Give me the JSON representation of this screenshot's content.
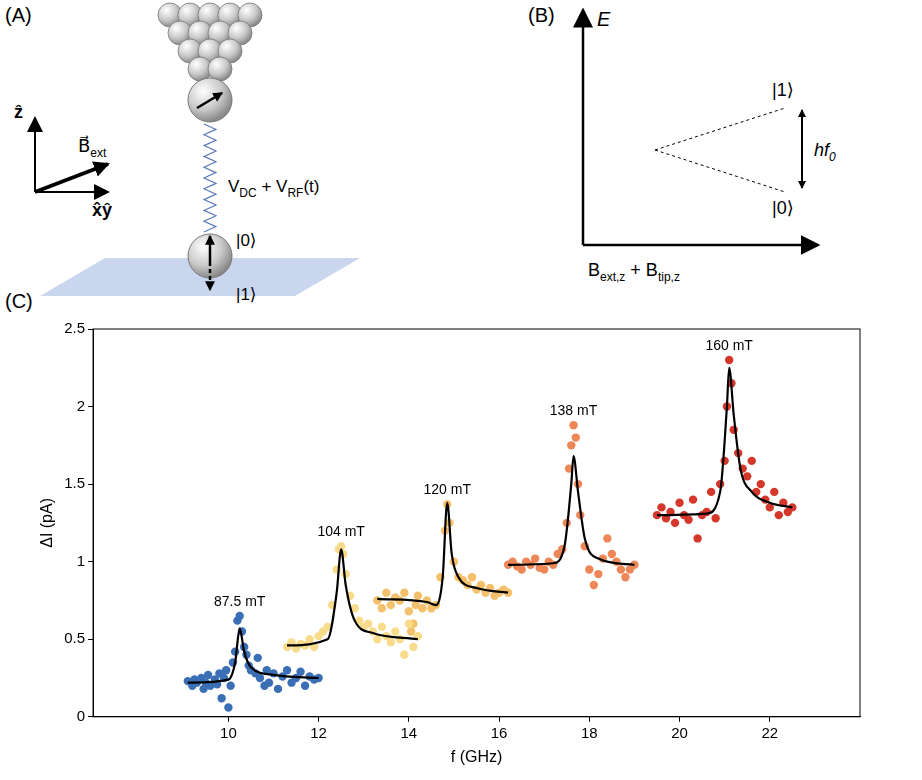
{
  "panels": {
    "A": {
      "letter": "(A)",
      "axis_z": [
        {
          "t": "ẑ"
        }
      ],
      "axis_xy": [
        {
          "t": "x̂ŷ"
        }
      ],
      "field": [
        {
          "t": "B⃗"
        },
        {
          "sub": "ext"
        }
      ],
      "bias": [
        {
          "t": "V"
        },
        {
          "sub": "DC"
        },
        {
          "t": " + V"
        },
        {
          "sub": "RF"
        },
        {
          "t": "(t)"
        }
      ],
      "state0": [
        {
          "t": "|0⟩"
        }
      ],
      "state1": [
        {
          "t": "|1⟩"
        }
      ]
    },
    "B": {
      "letter": "(B)",
      "y_label": [
        {
          "t": "E"
        }
      ],
      "upper": [
        {
          "t": "|1⟩"
        }
      ],
      "lower": [
        {
          "t": "|0⟩"
        }
      ],
      "gap": [
        {
          "t": "hf"
        },
        {
          "sub": "0"
        }
      ],
      "x_label": [
        {
          "t": "B"
        },
        {
          "sub": "ext,z"
        },
        {
          "t": " + B"
        },
        {
          "sub": "tip,z"
        }
      ]
    },
    "C": {
      "letter": "(C)"
    }
  },
  "chart_data": {
    "type": "scatter",
    "x_label": "f (GHz)",
    "y_label": "ΔI (pA)",
    "xlim": [
      7,
      24
    ],
    "xticks": [
      10,
      12,
      14,
      16,
      18,
      20,
      22
    ],
    "ylim": [
      0,
      2.5
    ],
    "yticks": [
      0,
      0.5,
      1,
      1.5,
      2,
      2.5
    ],
    "grid": false,
    "marker": "circle",
    "series": [
      {
        "name": "87.5 mT",
        "color": "#3a6fb5",
        "x": [
          9.1,
          9.2,
          9.25,
          9.3,
          9.4,
          9.45,
          9.5,
          9.55,
          9.6,
          9.7,
          9.75,
          9.8,
          9.85,
          9.9,
          9.95,
          10.0,
          10.05,
          10.1,
          10.15,
          10.2,
          10.25,
          10.3,
          10.35,
          10.4,
          10.45,
          10.5,
          10.6,
          10.65,
          10.7,
          10.8,
          10.85,
          10.9,
          11.0,
          11.1,
          11.2,
          11.3,
          11.4,
          11.5,
          11.6,
          11.7,
          11.8,
          11.9,
          12.0
        ],
        "values": [
          0.23,
          0.2,
          0.24,
          0.22,
          0.25,
          0.18,
          0.22,
          0.27,
          0.2,
          0.24,
          0.21,
          0.28,
          0.12,
          0.25,
          0.3,
          0.06,
          0.2,
          0.35,
          0.42,
          0.62,
          0.65,
          0.55,
          0.45,
          0.4,
          0.33,
          0.3,
          0.28,
          0.38,
          0.25,
          0.2,
          0.3,
          0.22,
          0.28,
          0.18,
          0.26,
          0.3,
          0.22,
          0.25,
          0.29,
          0.2,
          0.26,
          0.24,
          0.25
        ],
        "fit": {
          "color": "#000000",
          "x": [
            9.1,
            10.0,
            10.15,
            10.25,
            10.35,
            10.5,
            11.0,
            12.0
          ],
          "values": [
            0.22,
            0.24,
            0.35,
            0.57,
            0.42,
            0.32,
            0.27,
            0.25
          ]
        }
      },
      {
        "name": "104 mT",
        "color": "#f8dc8c",
        "x": [
          11.3,
          11.4,
          11.5,
          11.6,
          11.7,
          11.8,
          11.9,
          12.0,
          12.1,
          12.2,
          12.3,
          12.4,
          12.45,
          12.5,
          12.55,
          12.6,
          12.7,
          12.8,
          12.9,
          13.0,
          13.1,
          13.2,
          13.3,
          13.4,
          13.5,
          13.6,
          13.7,
          13.8,
          13.9,
          14.0,
          14.1,
          14.2
        ],
        "values": [
          0.45,
          0.48,
          0.44,
          0.47,
          0.46,
          0.5,
          0.45,
          0.52,
          0.55,
          0.58,
          0.72,
          0.95,
          1.08,
          1.1,
          1.05,
          0.92,
          0.78,
          0.7,
          0.62,
          0.58,
          0.6,
          0.55,
          0.5,
          0.58,
          0.52,
          0.48,
          0.55,
          0.5,
          0.4,
          0.6,
          0.45,
          0.52
        ],
        "fit": {
          "color": "#000000",
          "x": [
            11.3,
            12.2,
            12.4,
            12.5,
            12.6,
            12.8,
            13.2,
            14.2
          ],
          "values": [
            0.46,
            0.5,
            0.8,
            1.08,
            0.85,
            0.62,
            0.54,
            0.5
          ]
        }
      },
      {
        "name": "120 mT",
        "color": "#f5c06b",
        "x": [
          13.3,
          13.4,
          13.5,
          13.6,
          13.7,
          13.8,
          13.9,
          14.0,
          14.05,
          14.1,
          14.15,
          14.2,
          14.3,
          14.4,
          14.5,
          14.6,
          14.7,
          14.8,
          14.85,
          14.9,
          15.0,
          15.1,
          15.2,
          15.3,
          15.4,
          15.5,
          15.6,
          15.7,
          15.8,
          15.9,
          16.0,
          16.1,
          16.2
        ],
        "values": [
          0.75,
          0.7,
          0.8,
          0.72,
          0.77,
          0.75,
          0.8,
          0.68,
          0.55,
          0.6,
          0.72,
          0.78,
          0.7,
          0.75,
          0.7,
          0.72,
          0.9,
          1.2,
          1.37,
          1.25,
          1.0,
          0.9,
          0.88,
          0.85,
          0.9,
          0.82,
          0.85,
          0.8,
          0.83,
          0.78,
          0.8,
          0.82,
          0.8
        ],
        "fit": {
          "color": "#000000",
          "x": [
            13.3,
            14.4,
            14.6,
            14.75,
            14.85,
            14.95,
            15.1,
            15.5,
            16.2
          ],
          "values": [
            0.76,
            0.74,
            0.72,
            0.9,
            1.38,
            1.05,
            0.9,
            0.83,
            0.8
          ]
        }
      },
      {
        "name": "138 mT",
        "color": "#ee8758",
        "x": [
          16.2,
          16.3,
          16.4,
          16.5,
          16.6,
          16.7,
          16.8,
          16.9,
          17.0,
          17.1,
          17.2,
          17.3,
          17.4,
          17.5,
          17.55,
          17.6,
          17.65,
          17.7,
          17.75,
          17.8,
          17.9,
          18.0,
          18.1,
          18.2,
          18.3,
          18.4,
          18.5,
          18.6,
          18.7,
          18.8,
          18.9,
          19.0
        ],
        "values": [
          0.98,
          1.0,
          0.97,
          0.95,
          1.0,
          0.98,
          1.02,
          0.96,
          0.95,
          1.0,
          0.98,
          1.05,
          1.08,
          1.25,
          1.6,
          1.75,
          1.88,
          1.8,
          1.5,
          1.3,
          1.1,
          0.95,
          0.85,
          0.92,
          1.02,
          1.15,
          1.05,
          1.0,
          0.95,
          0.9,
          0.95,
          0.98
        ],
        "fit": {
          "color": "#000000",
          "x": [
            16.2,
            17.2,
            17.45,
            17.6,
            17.65,
            17.75,
            17.9,
            18.2,
            19.0
          ],
          "values": [
            0.98,
            0.99,
            1.1,
            1.5,
            1.68,
            1.45,
            1.15,
            1.02,
            0.98
          ]
        }
      },
      {
        "name": "160 mT",
        "color": "#d5382b",
        "x": [
          19.5,
          19.6,
          19.7,
          19.8,
          19.9,
          20.0,
          20.1,
          20.2,
          20.3,
          20.4,
          20.5,
          20.6,
          20.7,
          20.8,
          20.9,
          21.0,
          21.05,
          21.1,
          21.15,
          21.2,
          21.3,
          21.4,
          21.5,
          21.6,
          21.7,
          21.8,
          21.9,
          22.0,
          22.1,
          22.2,
          22.3,
          22.4,
          22.5
        ],
        "values": [
          1.3,
          1.35,
          1.28,
          1.32,
          1.25,
          1.38,
          1.3,
          1.27,
          1.4,
          1.15,
          1.3,
          1.32,
          1.45,
          1.28,
          1.5,
          1.65,
          2.0,
          2.3,
          2.15,
          1.85,
          1.7,
          1.6,
          1.55,
          1.65,
          1.45,
          1.5,
          1.4,
          1.35,
          1.45,
          1.3,
          1.38,
          1.32,
          1.35
        ],
        "fit": {
          "color": "#000000",
          "x": [
            19.5,
            20.6,
            20.9,
            21.05,
            21.1,
            21.2,
            21.35,
            21.6,
            22.0,
            22.5
          ],
          "values": [
            1.3,
            1.31,
            1.45,
            2.0,
            2.25,
            1.95,
            1.6,
            1.45,
            1.38,
            1.35
          ]
        }
      }
    ]
  }
}
